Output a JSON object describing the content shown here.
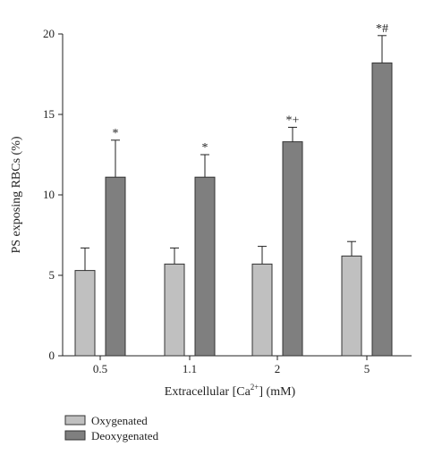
{
  "chart_data": {
    "type": "bar",
    "xlabel": "Extracellular [Ca",
    "xlabel_superscript": "2+",
    "xlabel_suffix": "] (mM)",
    "ylabel": "PS exposing RBCs (%)",
    "ylim": [
      0,
      20
    ],
    "yticks": [
      "0",
      "5",
      "10",
      "15",
      "20"
    ],
    "categories": [
      "0.5",
      "1.1",
      "2",
      "5"
    ],
    "series": [
      {
        "name": "Oxygenated",
        "color": "#c0c0c0",
        "values": [
          5.3,
          5.7,
          5.7,
          6.2
        ],
        "errors": [
          1.4,
          1.0,
          1.1,
          0.9
        ]
      },
      {
        "name": "Deoxygenated",
        "color": "#7f7f7f",
        "values": [
          11.1,
          11.1,
          13.3,
          18.2
        ],
        "errors": [
          2.3,
          1.4,
          0.9,
          1.7
        ]
      }
    ],
    "annotations": [
      "*",
      "*",
      "*+",
      "*#"
    ],
    "legend_position": "bottom-left",
    "grid": false
  }
}
